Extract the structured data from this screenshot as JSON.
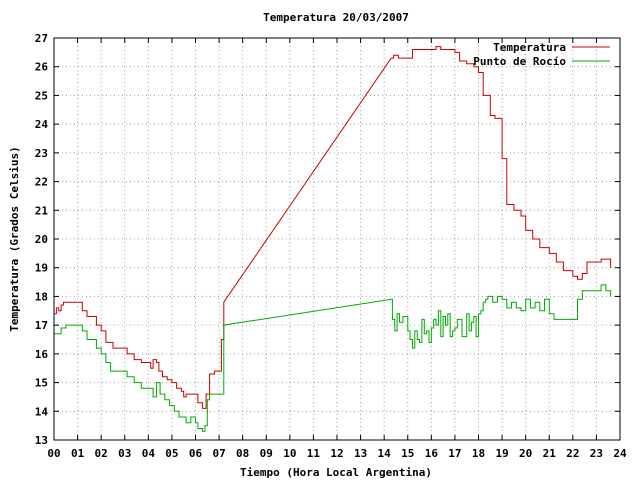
{
  "chart_data": {
    "type": "line",
    "title": "Temperatura 20/03/2007",
    "xlabel": "Tiempo (Hora Local Argentina)",
    "ylabel": "Temperatura (Grados Celsius)",
    "xlim": [
      0,
      24
    ],
    "ylim": [
      13,
      27
    ],
    "xticks": [
      "00",
      "01",
      "02",
      "03",
      "04",
      "05",
      "06",
      "07",
      "08",
      "09",
      "10",
      "11",
      "12",
      "13",
      "14",
      "15",
      "16",
      "17",
      "18",
      "19",
      "20",
      "21",
      "22",
      "23",
      "24"
    ],
    "yticks": [
      13,
      14,
      15,
      16,
      17,
      18,
      19,
      20,
      21,
      22,
      23,
      24,
      25,
      26,
      27
    ],
    "grid": true,
    "legend_position": "top-right",
    "series": [
      {
        "name": "Temperatura",
        "color": "#cc0000",
        "x": [
          0.0,
          0.1,
          0.2,
          0.3,
          0.4,
          0.6,
          1.0,
          1.2,
          1.4,
          1.6,
          1.8,
          2.0,
          2.2,
          2.5,
          2.9,
          3.1,
          3.4,
          3.7,
          3.9,
          4.1,
          4.2,
          4.35,
          4.45,
          4.6,
          4.8,
          5.0,
          5.2,
          5.4,
          5.5,
          5.6,
          5.7,
          6.0,
          6.1,
          6.3,
          6.45,
          6.6,
          6.8,
          7.0,
          7.1,
          7.2,
          14.3,
          14.4,
          14.6,
          15.0,
          15.2,
          15.5,
          16.0,
          16.2,
          16.4,
          16.6,
          16.8,
          17.0,
          17.2,
          17.5,
          17.8,
          18.0,
          18.2,
          18.5,
          18.7,
          19.0,
          19.2,
          19.5,
          19.8,
          20.0,
          20.3,
          20.6,
          20.9,
          21.0,
          21.3,
          21.6,
          22.0,
          22.2,
          22.4,
          22.6,
          22.8,
          23.0,
          23.2,
          23.4,
          23.6
        ],
        "y": [
          17.4,
          17.6,
          17.5,
          17.7,
          17.8,
          17.8,
          17.8,
          17.5,
          17.3,
          17.3,
          17.0,
          16.8,
          16.4,
          16.2,
          16.2,
          16.0,
          15.8,
          15.7,
          15.7,
          15.5,
          15.8,
          15.7,
          15.4,
          15.2,
          15.1,
          15.0,
          14.8,
          14.7,
          14.5,
          14.6,
          14.6,
          14.6,
          14.3,
          14.1,
          14.6,
          15.3,
          15.4,
          15.4,
          16.5,
          17.8,
          26.3,
          26.4,
          26.3,
          26.3,
          26.6,
          26.6,
          26.6,
          26.7,
          26.6,
          26.6,
          26.6,
          26.5,
          26.2,
          26.1,
          26.0,
          25.8,
          25.0,
          24.3,
          24.2,
          22.8,
          21.2,
          21.0,
          20.8,
          20.3,
          20.0,
          19.7,
          19.7,
          19.5,
          19.2,
          18.9,
          18.7,
          18.6,
          18.8,
          19.2,
          19.2,
          19.2,
          19.3,
          19.3,
          19.0
        ],
        "step": true
      },
      {
        "name": "Punto de Rocío",
        "color": "#00aa00",
        "x": [
          0.0,
          0.3,
          0.5,
          0.6,
          1.0,
          1.2,
          1.4,
          1.6,
          1.8,
          2.0,
          2.2,
          2.4,
          2.6,
          2.9,
          3.1,
          3.4,
          3.7,
          3.9,
          4.1,
          4.2,
          4.35,
          4.5,
          4.7,
          4.9,
          5.1,
          5.3,
          5.5,
          5.6,
          5.8,
          6.0,
          6.1,
          6.3,
          6.4,
          6.5,
          6.6,
          7.0,
          7.2,
          14.3,
          14.35,
          14.45,
          14.55,
          14.65,
          14.8,
          15.0,
          15.1,
          15.2,
          15.3,
          15.4,
          15.5,
          15.6,
          15.7,
          15.8,
          15.9,
          16.0,
          16.1,
          16.2,
          16.3,
          16.4,
          16.5,
          16.6,
          16.7,
          16.8,
          16.9,
          17.0,
          17.1,
          17.3,
          17.5,
          17.6,
          17.7,
          17.8,
          17.9,
          18.0,
          18.1,
          18.2,
          18.3,
          18.4,
          18.6,
          18.8,
          19.0,
          19.2,
          19.4,
          19.6,
          19.8,
          20.0,
          20.2,
          20.4,
          20.6,
          20.8,
          21.0,
          21.2,
          21.4,
          21.6,
          21.9,
          22.2,
          22.4,
          22.6,
          22.8,
          23.0,
          23.2,
          23.4,
          23.6
        ],
        "y": [
          16.7,
          16.9,
          17.0,
          17.0,
          17.0,
          16.8,
          16.5,
          16.5,
          16.2,
          16.0,
          15.7,
          15.4,
          15.4,
          15.4,
          15.2,
          15.0,
          14.8,
          14.8,
          14.8,
          14.5,
          15.0,
          14.6,
          14.4,
          14.2,
          14.0,
          13.8,
          13.8,
          13.6,
          13.8,
          13.6,
          13.4,
          13.3,
          13.5,
          14.4,
          14.6,
          14.6,
          17.0,
          17.9,
          17.2,
          16.8,
          17.4,
          17.1,
          17.3,
          16.8,
          16.5,
          16.2,
          16.8,
          16.5,
          16.4,
          17.2,
          16.7,
          16.8,
          16.4,
          16.9,
          17.2,
          17.0,
          17.5,
          16.6,
          17.3,
          17.0,
          17.4,
          16.6,
          16.8,
          16.9,
          17.2,
          16.6,
          17.4,
          16.8,
          17.1,
          17.3,
          16.6,
          17.4,
          17.5,
          17.8,
          17.9,
          18.0,
          17.8,
          18.0,
          17.9,
          17.6,
          17.8,
          17.6,
          17.5,
          17.9,
          17.6,
          17.8,
          17.5,
          17.9,
          17.4,
          17.2,
          17.2,
          17.2,
          17.2,
          17.9,
          18.2,
          18.2,
          18.2,
          18.2,
          18.4,
          18.2,
          18.0
        ],
        "step": true
      }
    ]
  }
}
